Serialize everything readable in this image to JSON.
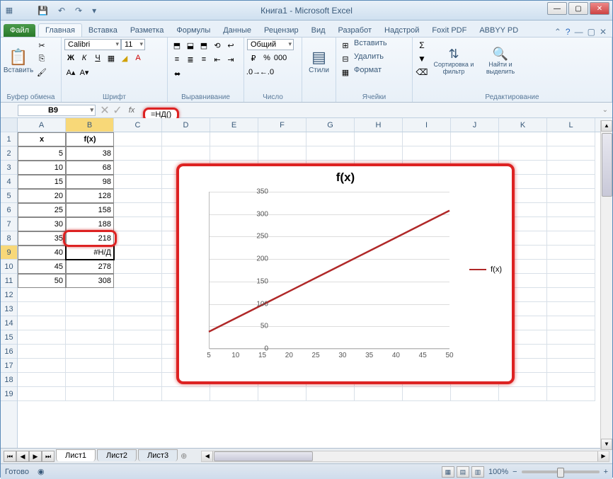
{
  "window": {
    "title": "Книга1 - Microsoft Excel"
  },
  "tabs": {
    "file": "Файл",
    "list": [
      "Главная",
      "Вставка",
      "Разметка",
      "Формулы",
      "Данные",
      "Рецензир",
      "Вид",
      "Разработ",
      "Надстрой",
      "Foxit PDF",
      "ABBYY PD"
    ],
    "active_index": 0
  },
  "ribbon": {
    "clipboard": {
      "paste": "Вставить",
      "label": "Буфер обмена"
    },
    "font": {
      "name": "Calibri",
      "size": "11",
      "label": "Шрифт"
    },
    "align": {
      "label": "Выравнивание"
    },
    "number": {
      "format": "Общий",
      "label": "Число"
    },
    "styles": {
      "btn": "Стили",
      "label": ""
    },
    "cells": {
      "insert": "Вставить",
      "delete": "Удалить",
      "format": "Формат",
      "label": "Ячейки"
    },
    "editing": {
      "sort": "Сортировка и фильтр",
      "find": "Найти и выделить",
      "label": "Редактирование"
    }
  },
  "formula_bar": {
    "cell_ref": "B9",
    "formula": "=НД()"
  },
  "columns": [
    "A",
    "B",
    "C",
    "D",
    "E",
    "F",
    "G",
    "H",
    "I",
    "J",
    "K",
    "L"
  ],
  "rows_visible": 19,
  "table": {
    "headers": [
      "x",
      "f(x)"
    ],
    "data": [
      [
        "5",
        "38"
      ],
      [
        "10",
        "68"
      ],
      [
        "15",
        "98"
      ],
      [
        "20",
        "128"
      ],
      [
        "25",
        "158"
      ],
      [
        "30",
        "188"
      ],
      [
        "35",
        "218"
      ],
      [
        "40",
        "#Н/Д"
      ],
      [
        "45",
        "278"
      ],
      [
        "50",
        "308"
      ]
    ],
    "active_row": 9,
    "active_col": "B"
  },
  "chart": {
    "title": "f(x)",
    "legend_label": "f(x)",
    "y_ticks": [
      0,
      50,
      100,
      150,
      200,
      250,
      300,
      350
    ],
    "x_ticks": [
      5,
      10,
      15,
      20,
      25,
      30,
      35,
      40,
      45,
      50
    ],
    "ylim": [
      0,
      350
    ],
    "series": {
      "x": [
        5,
        10,
        15,
        20,
        25,
        30,
        35,
        40,
        45,
        50
      ],
      "y": [
        38,
        68,
        98,
        128,
        158,
        188,
        218,
        248,
        278,
        308
      ]
    },
    "line_color": "#b02828",
    "grid_color": "#dddddd",
    "tick_fontsize": 10,
    "title_fontsize": 17
  },
  "sheet_tabs": {
    "list": [
      "Лист1",
      "Лист2",
      "Лист3"
    ],
    "active_index": 0
  },
  "status": {
    "text": "Готово",
    "zoom": "100%"
  }
}
